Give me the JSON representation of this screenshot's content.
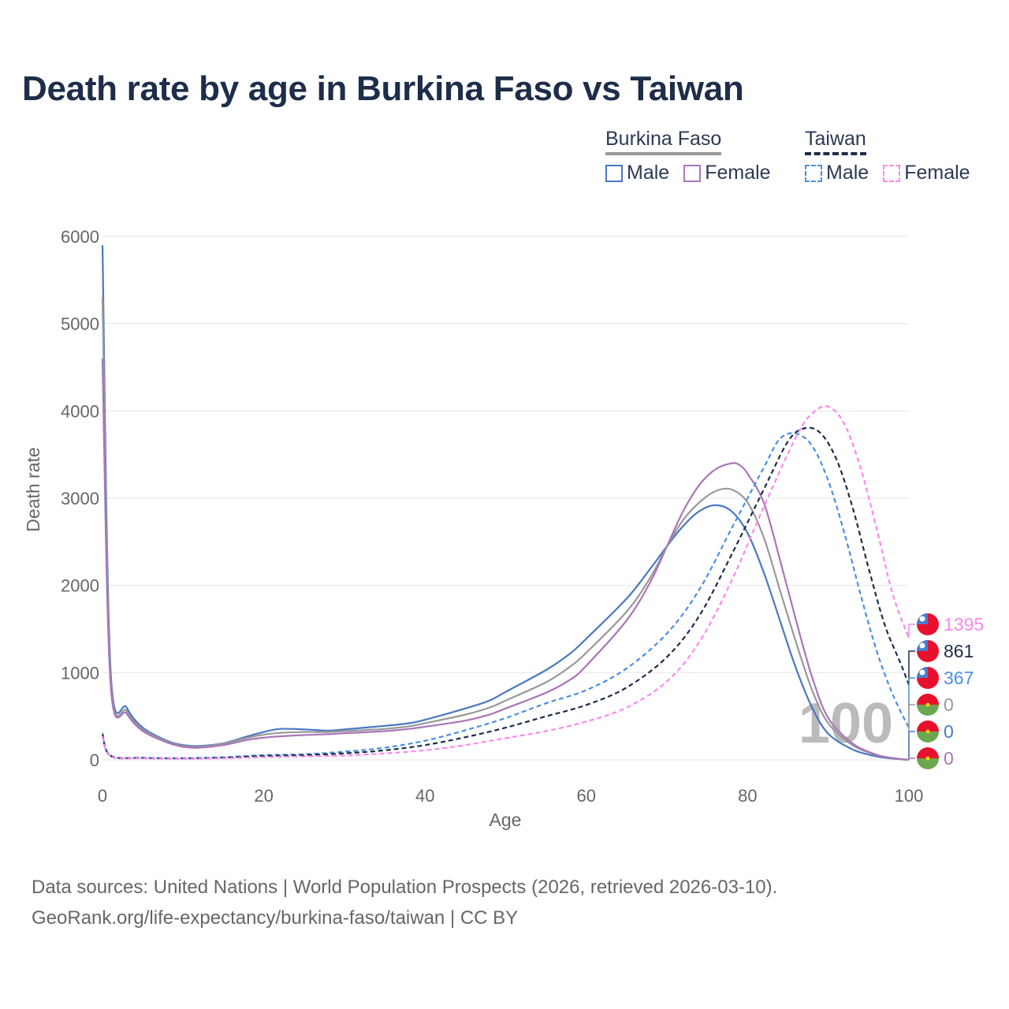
{
  "title": "Death rate by age in Burkina Faso vs Taiwan",
  "legend": {
    "groups": [
      {
        "name": "Burkina Faso",
        "items": [
          {
            "label": "Male",
            "color": "#4a78c2",
            "dash": false
          },
          {
            "label": "Female",
            "color": "#a975b8",
            "dash": false
          }
        ]
      },
      {
        "name": "Taiwan",
        "items": [
          {
            "label": "Male",
            "color": "#4a90e2",
            "dash": true
          },
          {
            "label": "Female",
            "color": "#ff88ee",
            "dash": true
          }
        ]
      }
    ]
  },
  "chart_data": {
    "type": "line",
    "title": "Death rate by age in Burkina Faso vs Taiwan",
    "xlabel": "Age",
    "ylabel": "Death rate",
    "xlim": [
      0,
      100
    ],
    "ylim": [
      0,
      6000
    ],
    "xticks": [
      0,
      20,
      40,
      60,
      80,
      100
    ],
    "yticks": [
      0,
      1000,
      2000,
      3000,
      4000,
      5000,
      6000
    ],
    "grid": true,
    "watermark": "100",
    "series": [
      {
        "name": "Burkina Faso Male",
        "country": "Burkina Faso",
        "sex": "Male",
        "color": "#4a78c2",
        "dash": false,
        "end_label": "0",
        "points": [
          [
            0,
            5900
          ],
          [
            1,
            1050
          ],
          [
            3,
            600
          ],
          [
            5,
            370
          ],
          [
            8,
            220
          ],
          [
            10,
            170
          ],
          [
            12,
            160
          ],
          [
            15,
            190
          ],
          [
            18,
            270
          ],
          [
            20,
            320
          ],
          [
            22,
            355
          ],
          [
            25,
            350
          ],
          [
            28,
            335
          ],
          [
            30,
            350
          ],
          [
            35,
            390
          ],
          [
            38,
            420
          ],
          [
            40,
            460
          ],
          [
            45,
            590
          ],
          [
            48,
            680
          ],
          [
            50,
            780
          ],
          [
            55,
            1030
          ],
          [
            58,
            1220
          ],
          [
            60,
            1390
          ],
          [
            65,
            1850
          ],
          [
            68,
            2200
          ],
          [
            70,
            2450
          ],
          [
            72,
            2680
          ],
          [
            74,
            2850
          ],
          [
            76,
            2920
          ],
          [
            78,
            2850
          ],
          [
            80,
            2600
          ],
          [
            82,
            2150
          ],
          [
            84,
            1600
          ],
          [
            86,
            1050
          ],
          [
            88,
            600
          ],
          [
            90,
            300
          ],
          [
            93,
            120
          ],
          [
            96,
            40
          ],
          [
            98,
            15
          ],
          [
            100,
            0
          ]
        ]
      },
      {
        "name": "Burkina Faso Both",
        "country": "Burkina Faso",
        "sex": "Both",
        "color": "#999999",
        "dash": false,
        "end_label": "0",
        "points": [
          [
            0,
            5300
          ],
          [
            1,
            960
          ],
          [
            3,
            560
          ],
          [
            5,
            350
          ],
          [
            8,
            210
          ],
          [
            10,
            160
          ],
          [
            12,
            150
          ],
          [
            15,
            185
          ],
          [
            18,
            255
          ],
          [
            20,
            290
          ],
          [
            22,
            310
          ],
          [
            25,
            320
          ],
          [
            28,
            320
          ],
          [
            30,
            330
          ],
          [
            35,
            355
          ],
          [
            38,
            385
          ],
          [
            40,
            420
          ],
          [
            45,
            520
          ],
          [
            48,
            600
          ],
          [
            50,
            680
          ],
          [
            55,
            890
          ],
          [
            58,
            1070
          ],
          [
            60,
            1230
          ],
          [
            65,
            1700
          ],
          [
            68,
            2100
          ],
          [
            70,
            2450
          ],
          [
            72,
            2750
          ],
          [
            74,
            2950
          ],
          [
            76,
            3080
          ],
          [
            78,
            3100
          ],
          [
            80,
            2950
          ],
          [
            82,
            2550
          ],
          [
            84,
            1950
          ],
          [
            86,
            1350
          ],
          [
            88,
            800
          ],
          [
            90,
            420
          ],
          [
            93,
            170
          ],
          [
            96,
            55
          ],
          [
            98,
            20
          ],
          [
            100,
            0
          ]
        ]
      },
      {
        "name": "Burkina Faso Female",
        "country": "Burkina Faso",
        "sex": "Female",
        "color": "#a975b8",
        "dash": false,
        "end_label": "0",
        "points": [
          [
            0,
            4600
          ],
          [
            1,
            880
          ],
          [
            3,
            530
          ],
          [
            5,
            330
          ],
          [
            8,
            200
          ],
          [
            10,
            150
          ],
          [
            12,
            140
          ],
          [
            15,
            170
          ],
          [
            18,
            230
          ],
          [
            20,
            255
          ],
          [
            22,
            270
          ],
          [
            25,
            285
          ],
          [
            28,
            295
          ],
          [
            30,
            305
          ],
          [
            35,
            330
          ],
          [
            38,
            355
          ],
          [
            40,
            380
          ],
          [
            45,
            450
          ],
          [
            48,
            520
          ],
          [
            50,
            590
          ],
          [
            55,
            770
          ],
          [
            58,
            920
          ],
          [
            60,
            1080
          ],
          [
            65,
            1600
          ],
          [
            68,
            2050
          ],
          [
            70,
            2450
          ],
          [
            72,
            2850
          ],
          [
            74,
            3150
          ],
          [
            76,
            3330
          ],
          [
            78,
            3400
          ],
          [
            79,
            3380
          ],
          [
            80,
            3280
          ],
          [
            82,
            2950
          ],
          [
            84,
            2300
          ],
          [
            86,
            1600
          ],
          [
            88,
            950
          ],
          [
            90,
            480
          ],
          [
            93,
            190
          ],
          [
            96,
            60
          ],
          [
            98,
            22
          ],
          [
            100,
            0
          ]
        ]
      },
      {
        "name": "Taiwan Male",
        "country": "Taiwan",
        "sex": "Male",
        "color": "#4a90e2",
        "dash": true,
        "end_label": "367",
        "points": [
          [
            0,
            310
          ],
          [
            1,
            50
          ],
          [
            5,
            25
          ],
          [
            10,
            20
          ],
          [
            15,
            30
          ],
          [
            20,
            55
          ],
          [
            25,
            65
          ],
          [
            30,
            95
          ],
          [
            35,
            140
          ],
          [
            40,
            220
          ],
          [
            45,
            340
          ],
          [
            50,
            480
          ],
          [
            55,
            650
          ],
          [
            60,
            800
          ],
          [
            65,
            1050
          ],
          [
            70,
            1450
          ],
          [
            74,
            1950
          ],
          [
            78,
            2650
          ],
          [
            82,
            3350
          ],
          [
            84,
            3680
          ],
          [
            86,
            3740
          ],
          [
            88,
            3600
          ],
          [
            90,
            3200
          ],
          [
            92,
            2600
          ],
          [
            94,
            1900
          ],
          [
            96,
            1250
          ],
          [
            98,
            750
          ],
          [
            100,
            367
          ]
        ]
      },
      {
        "name": "Taiwan Both",
        "country": "Taiwan",
        "sex": "Both",
        "color": "#1d2d4a",
        "dash": true,
        "end_label": "861",
        "points": [
          [
            0,
            290
          ],
          [
            1,
            45
          ],
          [
            5,
            22
          ],
          [
            10,
            17
          ],
          [
            15,
            25
          ],
          [
            20,
            45
          ],
          [
            25,
            55
          ],
          [
            30,
            75
          ],
          [
            35,
            110
          ],
          [
            40,
            170
          ],
          [
            45,
            260
          ],
          [
            50,
            370
          ],
          [
            55,
            500
          ],
          [
            60,
            630
          ],
          [
            65,
            830
          ],
          [
            70,
            1180
          ],
          [
            74,
            1650
          ],
          [
            78,
            2350
          ],
          [
            82,
            3100
          ],
          [
            85,
            3650
          ],
          [
            87,
            3800
          ],
          [
            89,
            3750
          ],
          [
            91,
            3450
          ],
          [
            93,
            2900
          ],
          [
            95,
            2200
          ],
          [
            97,
            1550
          ],
          [
            99,
            1100
          ],
          [
            100,
            861
          ]
        ]
      },
      {
        "name": "Taiwan Female",
        "country": "Taiwan",
        "sex": "Female",
        "color": "#ff88ee",
        "dash": true,
        "end_label": "1395",
        "points": [
          [
            0,
            270
          ],
          [
            1,
            40
          ],
          [
            5,
            18
          ],
          [
            10,
            14
          ],
          [
            15,
            18
          ],
          [
            20,
            32
          ],
          [
            25,
            40
          ],
          [
            30,
            50
          ],
          [
            35,
            75
          ],
          [
            40,
            110
          ],
          [
            45,
            170
          ],
          [
            50,
            250
          ],
          [
            55,
            330
          ],
          [
            60,
            440
          ],
          [
            65,
            600
          ],
          [
            70,
            900
          ],
          [
            74,
            1350
          ],
          [
            78,
            2050
          ],
          [
            82,
            2900
          ],
          [
            86,
            3700
          ],
          [
            88,
            3970
          ],
          [
            90,
            4050
          ],
          [
            92,
            3850
          ],
          [
            94,
            3350
          ],
          [
            96,
            2650
          ],
          [
            98,
            1900
          ],
          [
            100,
            1395
          ]
        ]
      }
    ],
    "end_labels_order": [
      {
        "text": "1395",
        "color": "#ff88ee",
        "flag": "taiwan"
      },
      {
        "text": "861",
        "color": "#1d2d4a",
        "flag": "taiwan"
      },
      {
        "text": "367",
        "color": "#4a90e2",
        "flag": "taiwan"
      },
      {
        "text": "0",
        "color": "#999999",
        "flag": "burkina-faso"
      },
      {
        "text": "0",
        "color": "#4a78c2",
        "flag": "burkina-faso"
      },
      {
        "text": "0",
        "color": "#a975b8",
        "flag": "burkina-faso"
      }
    ]
  },
  "footer": {
    "line1": "Data sources: United Nations | World Population Prospects (2026, retrieved 2026-03-10).",
    "line2": "GeoRank.org/life-expectancy/burkina-faso/taiwan | CC BY"
  }
}
